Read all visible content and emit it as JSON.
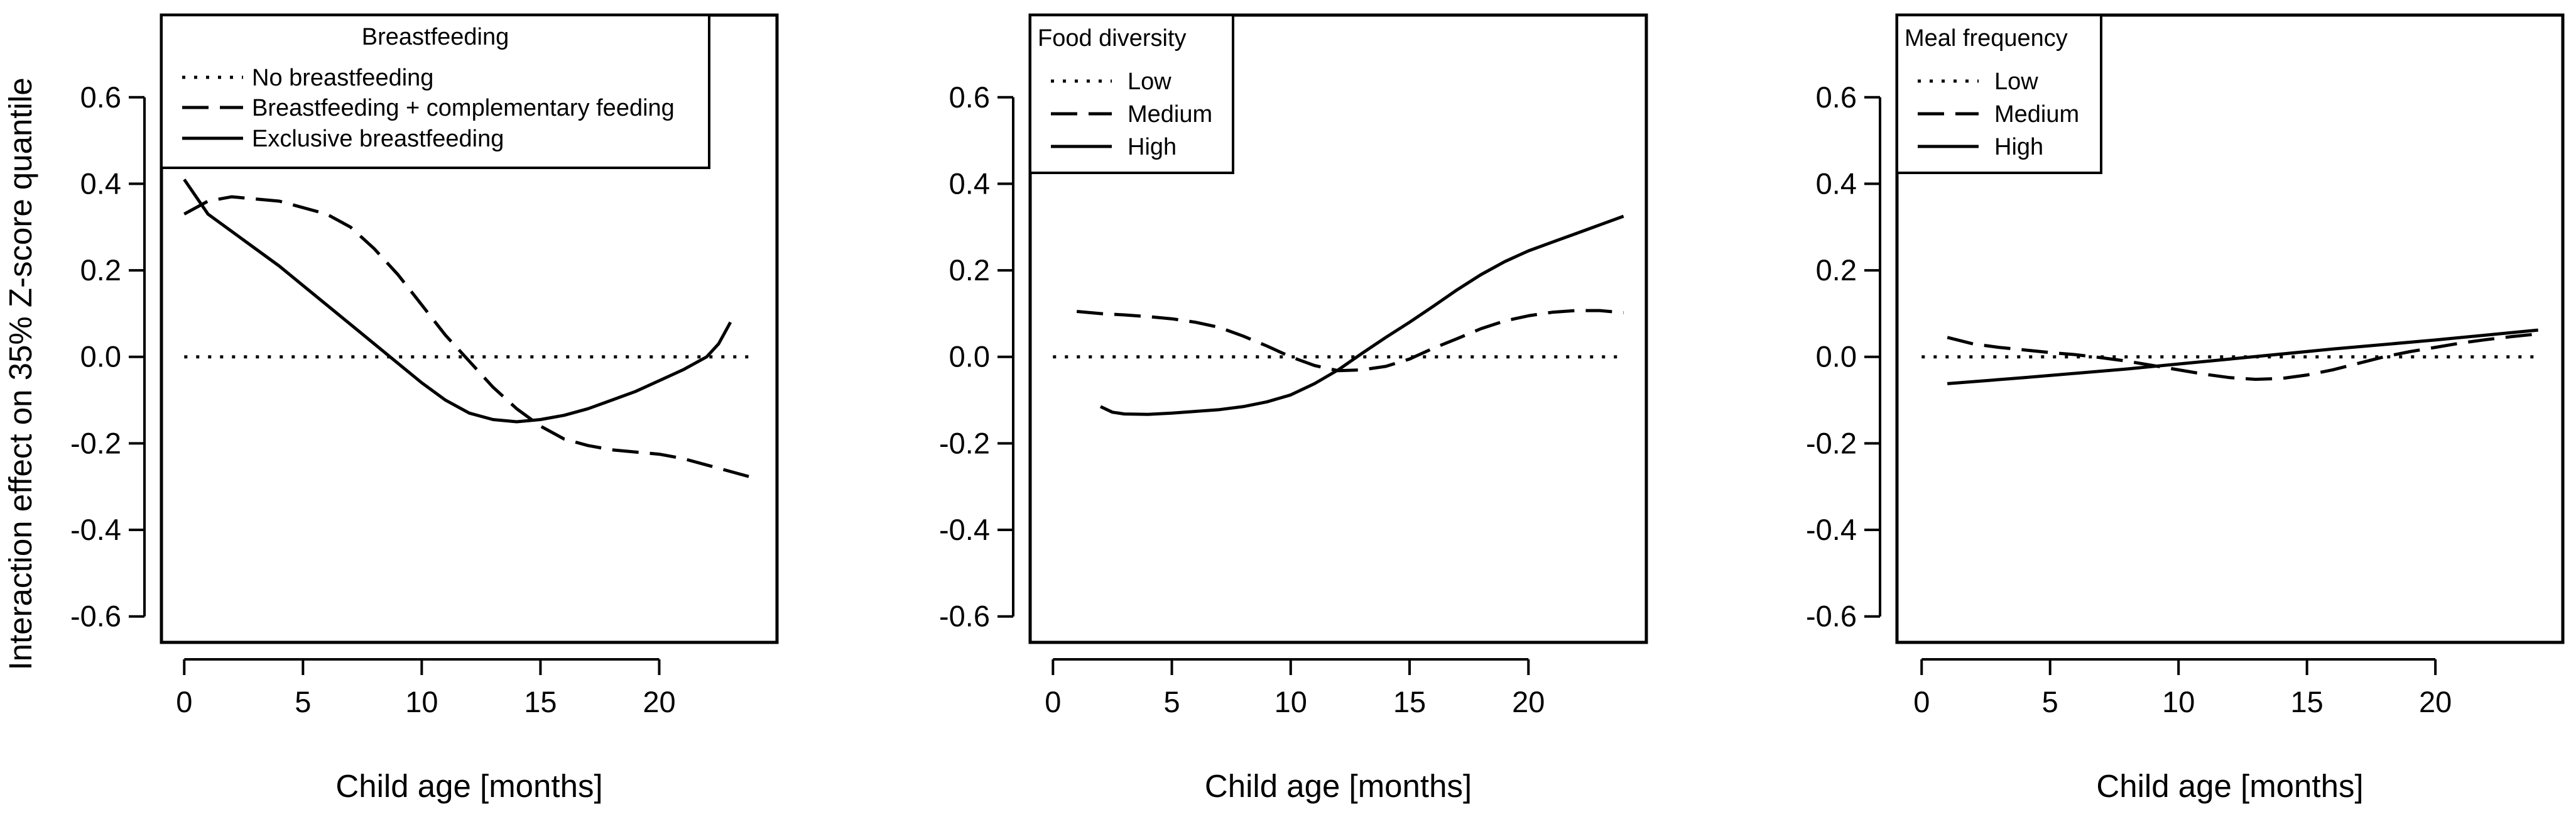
{
  "figure": {
    "ylabel": "Interaction effect on 35% Z-score quantile"
  },
  "chart_data": [
    {
      "type": "line",
      "title": "",
      "xlabel": "Child age [months]",
      "ylabel": "Interaction effect on 35% Z-score quantile",
      "xlim": [
        -0.96,
        24.96
      ],
      "ylim": [
        -0.66,
        0.79
      ],
      "xticks": [
        "0",
        "5",
        "10",
        "15",
        "20"
      ],
      "yticks": [
        "0.6",
        "0.4",
        "0.2",
        "0.0",
        "-0.2",
        "-0.4",
        "-0.6"
      ],
      "grid": false,
      "legend": {
        "title": "Breastfeeding",
        "position": "top-left"
      },
      "series": [
        {
          "name": "No breastfeeding",
          "dash": "dotted",
          "points": [
            [
              0,
              0
            ],
            [
              24,
              0
            ]
          ]
        },
        {
          "name": "Breastfeeding + complementary feeding",
          "dash": "dashed",
          "points": [
            [
              0,
              0.33
            ],
            [
              1,
              0.36
            ],
            [
              2,
              0.37
            ],
            [
              4,
              0.36
            ],
            [
              6,
              0.33
            ],
            [
              7,
              0.3
            ],
            [
              8,
              0.25
            ],
            [
              9,
              0.19
            ],
            [
              10,
              0.12
            ],
            [
              11,
              0.05
            ],
            [
              12,
              -0.01
            ],
            [
              13,
              -0.07
            ],
            [
              14,
              -0.12
            ],
            [
              15,
              -0.16
            ],
            [
              16,
              -0.19
            ],
            [
              17,
              -0.205
            ],
            [
              18,
              -0.215
            ],
            [
              20,
              -0.225
            ],
            [
              21,
              -0.235
            ],
            [
              22,
              -0.25
            ],
            [
              23,
              -0.265
            ],
            [
              24,
              -0.28
            ]
          ]
        },
        {
          "name": "Exclusive breastfeeding",
          "dash": "solid",
          "points": [
            [
              0,
              0.41
            ],
            [
              1,
              0.33
            ],
            [
              2,
              0.29
            ],
            [
              3,
              0.25
            ],
            [
              4,
              0.21
            ],
            [
              5,
              0.165
            ],
            [
              6,
              0.12
            ],
            [
              7,
              0.075
            ],
            [
              8,
              0.03
            ],
            [
              9,
              -0.015
            ],
            [
              10,
              -0.06
            ],
            [
              11,
              -0.1
            ],
            [
              12,
              -0.13
            ],
            [
              13,
              -0.145
            ],
            [
              14,
              -0.15
            ],
            [
              15,
              -0.145
            ],
            [
              16,
              -0.135
            ],
            [
              17,
              -0.12
            ],
            [
              18,
              -0.1
            ],
            [
              19,
              -0.08
            ],
            [
              20,
              -0.055
            ],
            [
              21,
              -0.03
            ],
            [
              22,
              0.0
            ],
            [
              22.5,
              0.03
            ],
            [
              23,
              0.08
            ]
          ]
        }
      ]
    },
    {
      "type": "line",
      "title": "",
      "xlabel": "Child age [months]",
      "ylabel": "",
      "xlim": [
        -0.96,
        24.96
      ],
      "ylim": [
        -0.66,
        0.79
      ],
      "xticks": [
        "0",
        "5",
        "10",
        "15",
        "20"
      ],
      "yticks": [
        "0.6",
        "0.4",
        "0.2",
        "0.0",
        "-0.2",
        "-0.4",
        "-0.6"
      ],
      "grid": false,
      "legend": {
        "title": "Food diversity",
        "position": "top-left"
      },
      "series": [
        {
          "name": "Low",
          "dash": "dotted",
          "points": [
            [
              0,
              0
            ],
            [
              24,
              0
            ]
          ]
        },
        {
          "name": "Medium",
          "dash": "dashed",
          "points": [
            [
              1,
              0.105
            ],
            [
              2,
              0.1
            ],
            [
              3,
              0.097
            ],
            [
              4,
              0.093
            ],
            [
              5,
              0.088
            ],
            [
              6,
              0.08
            ],
            [
              7,
              0.068
            ],
            [
              8,
              0.048
            ],
            [
              9,
              0.025
            ],
            [
              10,
              0.0
            ],
            [
              11,
              -0.02
            ],
            [
              12,
              -0.032
            ],
            [
              13,
              -0.03
            ],
            [
              14,
              -0.022
            ],
            [
              15,
              -0.005
            ],
            [
              16,
              0.02
            ],
            [
              17,
              0.042
            ],
            [
              18,
              0.065
            ],
            [
              19,
              0.083
            ],
            [
              20,
              0.095
            ],
            [
              21,
              0.103
            ],
            [
              22,
              0.107
            ],
            [
              23,
              0.107
            ],
            [
              24,
              0.102
            ]
          ]
        },
        {
          "name": "High",
          "dash": "solid",
          "points": [
            [
              2,
              -0.115
            ],
            [
              2.5,
              -0.128
            ],
            [
              3,
              -0.132
            ],
            [
              4,
              -0.133
            ],
            [
              5,
              -0.13
            ],
            [
              6,
              -0.126
            ],
            [
              7,
              -0.122
            ],
            [
              8,
              -0.115
            ],
            [
              9,
              -0.104
            ],
            [
              10,
              -0.088
            ],
            [
              11,
              -0.062
            ],
            [
              12,
              -0.03
            ],
            [
              13,
              0.008
            ],
            [
              14,
              0.045
            ],
            [
              15,
              0.08
            ],
            [
              16,
              0.117
            ],
            [
              17,
              0.155
            ],
            [
              18,
              0.19
            ],
            [
              19,
              0.22
            ],
            [
              20,
              0.245
            ],
            [
              21,
              0.265
            ],
            [
              22,
              0.285
            ],
            [
              23,
              0.305
            ],
            [
              24,
              0.325
            ]
          ]
        }
      ]
    },
    {
      "type": "line",
      "title": "",
      "xlabel": "Child age [months]",
      "ylabel": "",
      "xlim": [
        -0.96,
        24.96
      ],
      "ylim": [
        -0.66,
        0.79
      ],
      "xticks": [
        "0",
        "5",
        "10",
        "15",
        "20"
      ],
      "yticks": [
        "0.6",
        "0.4",
        "0.2",
        "0.0",
        "-0.2",
        "-0.4",
        "-0.6"
      ],
      "grid": false,
      "legend": {
        "title": "Meal frequency",
        "position": "top-left"
      },
      "series": [
        {
          "name": "Low",
          "dash": "dotted",
          "points": [
            [
              0,
              0
            ],
            [
              24,
              0
            ]
          ]
        },
        {
          "name": "Medium",
          "dash": "dashed",
          "points": [
            [
              1,
              0.045
            ],
            [
              2,
              0.03
            ],
            [
              3,
              0.022
            ],
            [
              4,
              0.016
            ],
            [
              5,
              0.01
            ],
            [
              6,
              0.005
            ],
            [
              7,
              -0.002
            ],
            [
              8,
              -0.01
            ],
            [
              9,
              -0.02
            ],
            [
              10,
              -0.03
            ],
            [
              11,
              -0.04
            ],
            [
              12,
              -0.048
            ],
            [
              13,
              -0.052
            ],
            [
              14,
              -0.05
            ],
            [
              15,
              -0.042
            ],
            [
              16,
              -0.03
            ],
            [
              17,
              -0.015
            ],
            [
              18,
              0.0
            ],
            [
              19,
              0.012
            ],
            [
              20,
              0.022
            ],
            [
              21,
              0.032
            ],
            [
              22,
              0.04
            ],
            [
              23,
              0.047
            ],
            [
              24,
              0.053
            ]
          ]
        },
        {
          "name": "High",
          "dash": "solid",
          "points": [
            [
              1,
              -0.062
            ],
            [
              4,
              -0.048
            ],
            [
              8,
              -0.028
            ],
            [
              12,
              -0.005
            ],
            [
              16,
              0.018
            ],
            [
              20,
              0.039
            ],
            [
              24,
              0.062
            ]
          ]
        }
      ]
    }
  ]
}
